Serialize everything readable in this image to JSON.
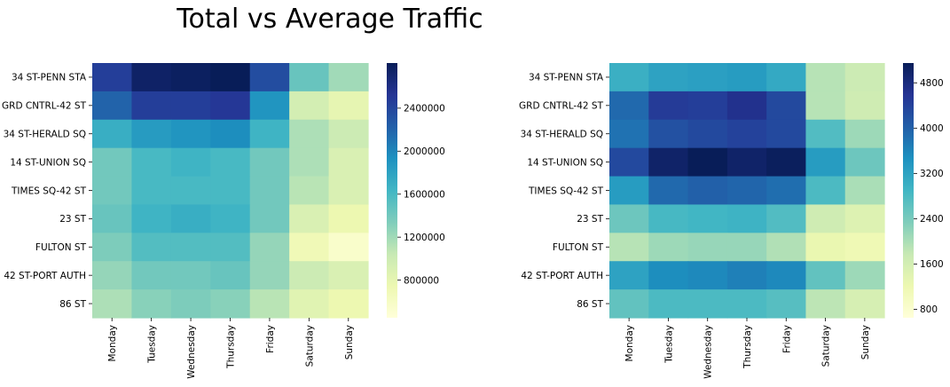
{
  "title": "Total vs Average Traffic",
  "chart_data": [
    {
      "type": "heatmap",
      "stations": [
        "34 ST-PENN STA",
        "GRD CNTRL-42 ST",
        "34 ST-HERALD SQ",
        "14 ST-UNION SQ",
        "TIMES SQ-42 ST",
        "23 ST",
        "FULTON ST",
        "42 ST-PORT AUTH",
        "86 ST"
      ],
      "days": [
        "Monday",
        "Tuesday",
        "Wednesday",
        "Thursday",
        "Friday",
        "Saturday",
        "Sunday"
      ],
      "values": [
        [
          2450000,
          2750000,
          2780000,
          2820000,
          2350000,
          1450000,
          1200000
        ],
        [
          2200000,
          2450000,
          2450000,
          2500000,
          1900000,
          950000,
          800000
        ],
        [
          1700000,
          1850000,
          1900000,
          1950000,
          1650000,
          1150000,
          1000000
        ],
        [
          1400000,
          1600000,
          1650000,
          1600000,
          1400000,
          1150000,
          900000
        ],
        [
          1400000,
          1600000,
          1600000,
          1600000,
          1400000,
          1100000,
          900000
        ],
        [
          1450000,
          1650000,
          1700000,
          1650000,
          1400000,
          900000,
          750000
        ],
        [
          1350000,
          1550000,
          1550000,
          1550000,
          1250000,
          700000,
          550000
        ],
        [
          1250000,
          1400000,
          1400000,
          1450000,
          1250000,
          1000000,
          900000
        ],
        [
          1150000,
          1300000,
          1350000,
          1300000,
          1100000,
          850000,
          750000
        ]
      ],
      "vmin": 450000,
      "vmax": 2820000,
      "colorbar_ticks": [
        800000,
        1200000,
        1600000,
        2000000,
        2400000
      ],
      "colorbar_tick_labels": [
        "800000",
        "1200000",
        "1600000",
        "2000000",
        "2400000"
      ],
      "colormap": "YlGnBu"
    },
    {
      "type": "heatmap",
      "stations": [
        "34 ST-PENN STA",
        "GRD CNTRL-42 ST",
        "34 ST-HERALD SQ",
        "14 ST-UNION SQ",
        "TIMES SQ-42 ST",
        "23 ST",
        "FULTON ST",
        "42 ST-PORT AUTH",
        "86 ST"
      ],
      "days": [
        "Monday",
        "Tuesday",
        "Wednesday",
        "Thursday",
        "Friday",
        "Saturday",
        "Sunday"
      ],
      "values": [
        [
          3000,
          3200,
          3250,
          3300,
          3100,
          1900,
          1700
        ],
        [
          3900,
          4500,
          4450,
          4650,
          4300,
          1900,
          1650
        ],
        [
          3800,
          4200,
          4300,
          4400,
          4300,
          2750,
          2100
        ],
        [
          4300,
          5000,
          5150,
          5000,
          5100,
          3300,
          2500
        ],
        [
          3300,
          3900,
          4000,
          3950,
          3850,
          2800,
          2000
        ],
        [
          2500,
          2850,
          2900,
          2950,
          2750,
          1650,
          1450
        ],
        [
          1900,
          2100,
          2150,
          2150,
          1950,
          1250,
          1150
        ],
        [
          3200,
          3500,
          3550,
          3650,
          3550,
          2600,
          2100
        ],
        [
          2600,
          2800,
          2800,
          2800,
          2700,
          1850,
          1550
        ]
      ],
      "vmin": 650,
      "vmax": 5150,
      "colorbar_ticks": [
        800,
        1600,
        2400,
        3200,
        4000,
        4800
      ],
      "colorbar_tick_labels": [
        "800",
        "1600",
        "2400",
        "3200",
        "4000",
        "4800"
      ],
      "colormap": "YlGnBu"
    }
  ]
}
